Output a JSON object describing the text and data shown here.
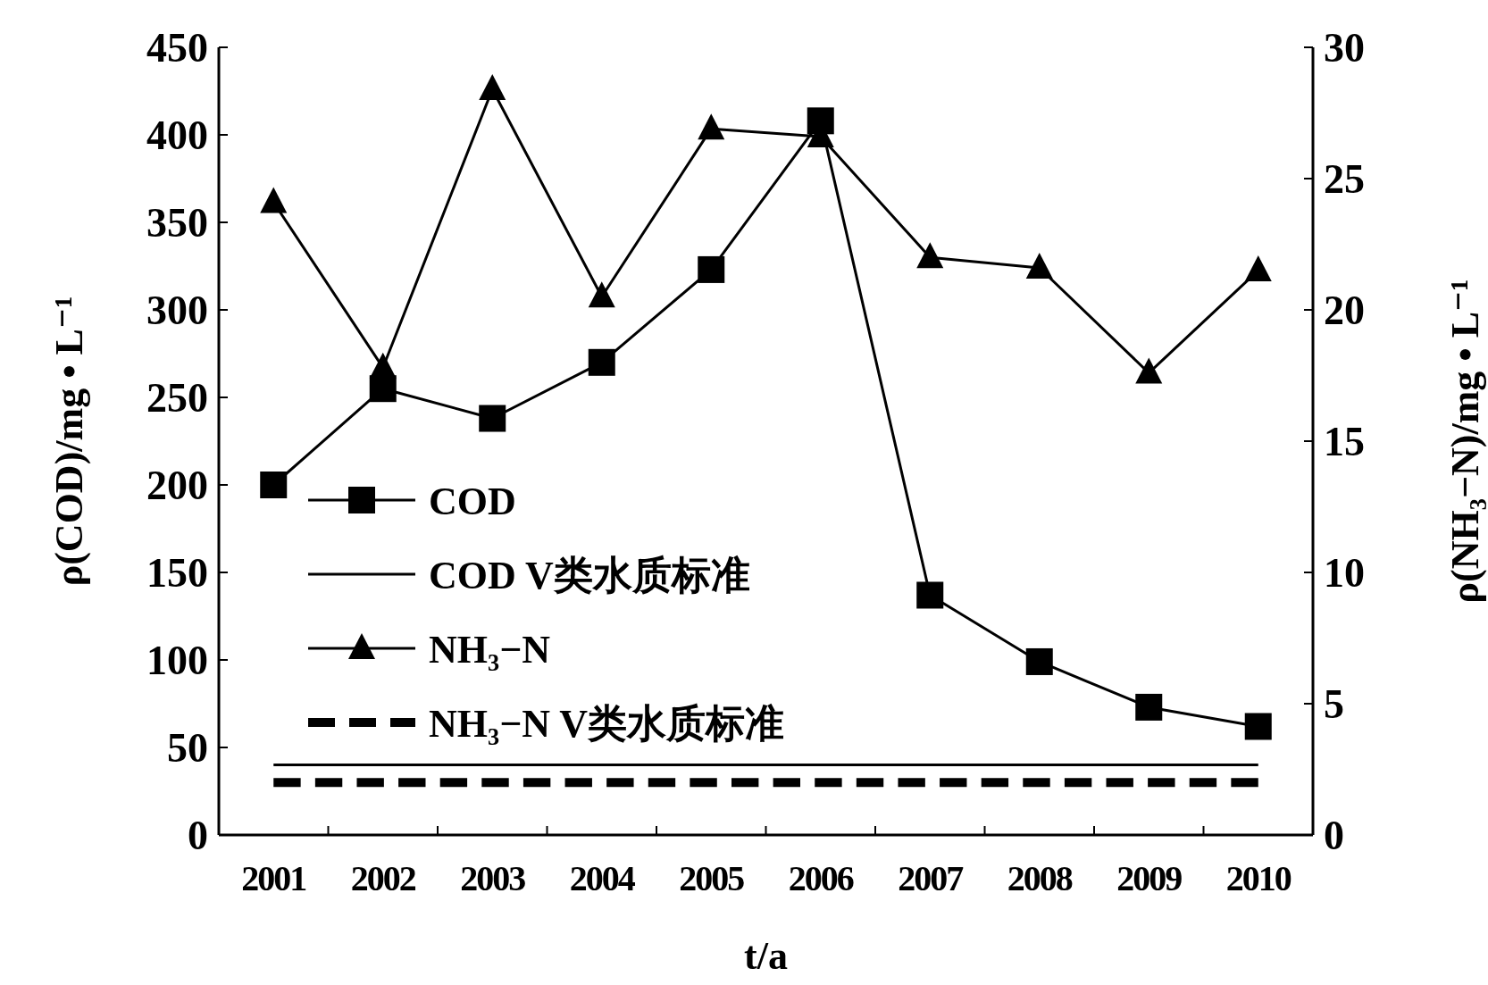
{
  "chart_data": {
    "type": "line",
    "xlabel": "t/a",
    "ylabel": "ρ(COD)/mg • L⁻¹",
    "y2label": "ρ(NH₃−N)/mg • L⁻¹",
    "categories": [
      "2001",
      "2002",
      "2003",
      "2004",
      "2005",
      "2006",
      "2007",
      "2008",
      "2009",
      "2010"
    ],
    "series": [
      {
        "name": "COD",
        "color": "#000000",
        "marker": "square",
        "line_style": "solid",
        "values": [
          200,
          255,
          238,
          270,
          323,
          408,
          137,
          99,
          73,
          62
        ]
      },
      {
        "name": "COD V类水质标准",
        "color": "#000000",
        "marker": "none",
        "line_style": "solid",
        "values": [
          40,
          40,
          40,
          40,
          40,
          40,
          40,
          40,
          40,
          40
        ]
      },
      {
        "name": "NH₃−N",
        "color": "#000000",
        "marker": "triangle",
        "line_style": "solid",
        "axis": "y2",
        "values": [
          24.1,
          17.8,
          28.4,
          20.5,
          26.9,
          26.6,
          22.0,
          21.6,
          17.6,
          21.5
        ]
      },
      {
        "name": "NH₃−N V类水质标准",
        "color": "#000000",
        "marker": "none",
        "line_style": "dashed",
        "axis": "y2",
        "values": [
          2,
          2,
          2,
          2,
          2,
          2,
          2,
          2,
          2,
          2
        ]
      }
    ],
    "ylim": [
      0,
      450
    ],
    "yticks": [
      0,
      50,
      100,
      150,
      200,
      250,
      300,
      350,
      400,
      450
    ],
    "y2lim": [
      0,
      30
    ],
    "y2ticks": [
      0,
      5,
      10,
      15,
      20,
      25,
      30
    ],
    "legend": "left"
  }
}
